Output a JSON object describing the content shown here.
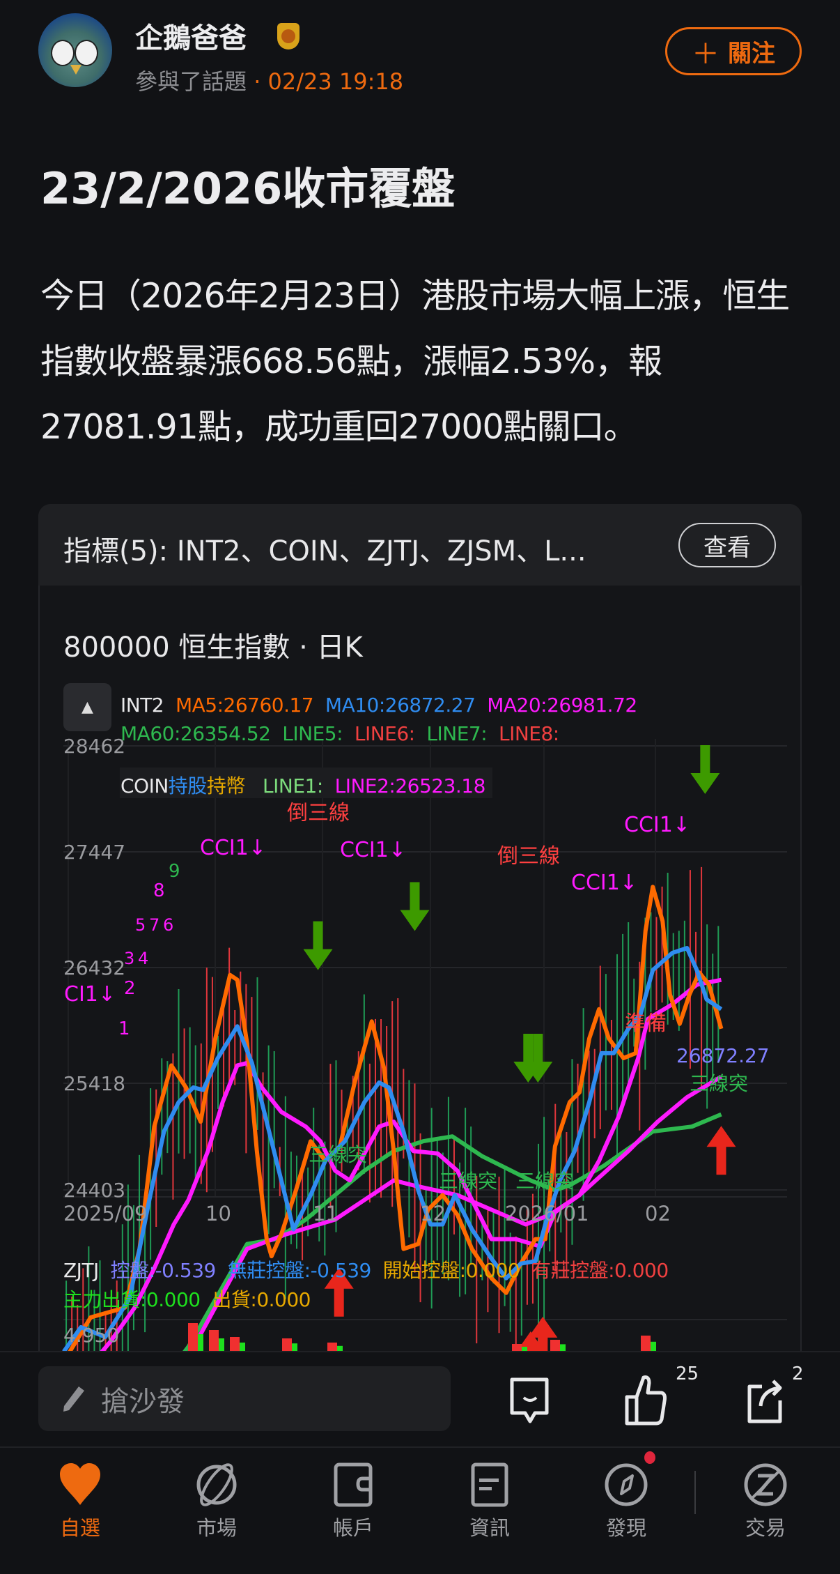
{
  "post": {
    "author": "企鵝爸爸",
    "activity": "參與了話題",
    "separator": "·",
    "time": "02/23 19:18",
    "follow_label": "關注",
    "title": "23/2/2026收市覆盤",
    "body": "今日（2026年2月23日）港股市場大幅上漲，恒生指數收盤暴漲668.56點，漲幅2.53%，報27081.91點，成功重回27000點關口。"
  },
  "card": {
    "indicators": "指標(5): INT2、COIN、ZJTJ、ZJSM、L...",
    "view_label": "查看",
    "stock": "800000  恒生指數 · 日K"
  },
  "chart": {
    "legend1": {
      "name": "INT2",
      "ma5": "MA5:26760.17",
      "ma10": "MA10:26872.27",
      "ma20": "MA20:26981.72"
    },
    "legend2": {
      "ma60": "MA60:26354.52",
      "line5": "LINE5:",
      "line6": "LINE6:",
      "line7": "LINE7:",
      "line8": "LINE8:"
    },
    "legend3": {
      "coin": "COIN",
      "hold_stock": "持股",
      "hold_cash": "持幣",
      "line1": "LINE1:",
      "line2": "LINE2:26523.18"
    },
    "y_ticks": [
      "28462",
      "27447",
      "26432",
      "25418",
      "24403"
    ],
    "x_ticks": [
      "2025/09",
      "10",
      "11",
      "12",
      "2026/01",
      "02"
    ],
    "annotations": {
      "cci": "CCI1↓",
      "ci": "CI1↓",
      "reverse_three": "倒三線",
      "three_break": "三線突",
      "prepare": "準備",
      "last_value": "26872.27",
      "counts": [
        "1",
        "2",
        "3",
        "4",
        "5",
        "7",
        "6",
        "8",
        "9"
      ]
    },
    "colors": {
      "ma5": "#ff6a00",
      "ma10": "#2f8cf0",
      "ma20": "#ff1aff",
      "ma60": "#2eb84f",
      "up": "#e8261c",
      "down": "#3d9a00"
    }
  },
  "zjtj": {
    "name": "ZJTJ",
    "kongpan": "控盤:-0.539",
    "wuzhuang": "無莊控盤:-0.539",
    "kaishi": "開始控盤:0.000",
    "youzhuang": "有莊控盤:0.000",
    "zhuli": "主力出貨:0.000",
    "chuhuo": "出貨:0.000",
    "y_top": "4.950"
  },
  "actions": {
    "comment_placeholder": "搶沙發",
    "likes": "25",
    "shares": "2"
  },
  "nav": [
    {
      "label": "自選",
      "icon": "heart-icon",
      "active": true
    },
    {
      "label": "市場",
      "icon": "planet-icon"
    },
    {
      "label": "帳戶",
      "icon": "wallet-icon"
    },
    {
      "label": "資訊",
      "icon": "news-icon"
    },
    {
      "label": "發現",
      "icon": "compass-icon",
      "badge": true
    },
    {
      "label": "交易",
      "icon": "trade-icon"
    }
  ]
}
